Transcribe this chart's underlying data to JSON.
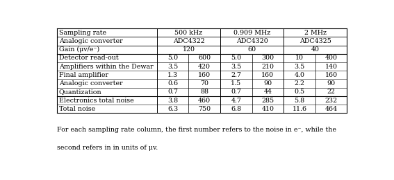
{
  "header_row1": [
    "Sampling rate",
    "500 kHz",
    "0.909 MHz",
    "2 MHz"
  ],
  "header_row2": [
    "Analogic converter",
    "ADC4322",
    "ADC4320",
    "ADC4325"
  ],
  "header_row3_label": "Gain (μv/e⁻)",
  "header_row3_vals": [
    "120",
    "60",
    "40"
  ],
  "data_rows": [
    [
      "Detector read-out",
      "5.0",
      "600",
      "5.0",
      "300",
      "10",
      "400"
    ],
    [
      "Amplifiers within the Dewar",
      "3.5",
      "420",
      "3.5",
      "210",
      "3.5",
      "140"
    ],
    [
      "Final amplifier",
      "1.3",
      "160",
      "2.7",
      "160",
      "4.0",
      "160"
    ],
    [
      "Analogic converter",
      "0.6",
      "70",
      "1.5",
      "90",
      "2.2",
      "90"
    ],
    [
      "Quantization",
      "0.7",
      "88",
      "0.7",
      "44",
      "0.5",
      "22"
    ]
  ],
  "summary_rows": [
    [
      "Electronics total noise",
      "3.8",
      "460",
      "4.7",
      "285",
      "5.8",
      "232"
    ],
    [
      "Total noise",
      "6.3",
      "750",
      "6.8",
      "410",
      "11.6",
      "464"
    ]
  ],
  "footnote_line1": "For each sampling rate column, the first number refers to the noise in e⁻, while the",
  "footnote_line2": "second refers in in units of μv.",
  "background_color": "#ffffff",
  "line_color": "#000000",
  "font_size": 6.8,
  "footnote_font_size": 6.8
}
